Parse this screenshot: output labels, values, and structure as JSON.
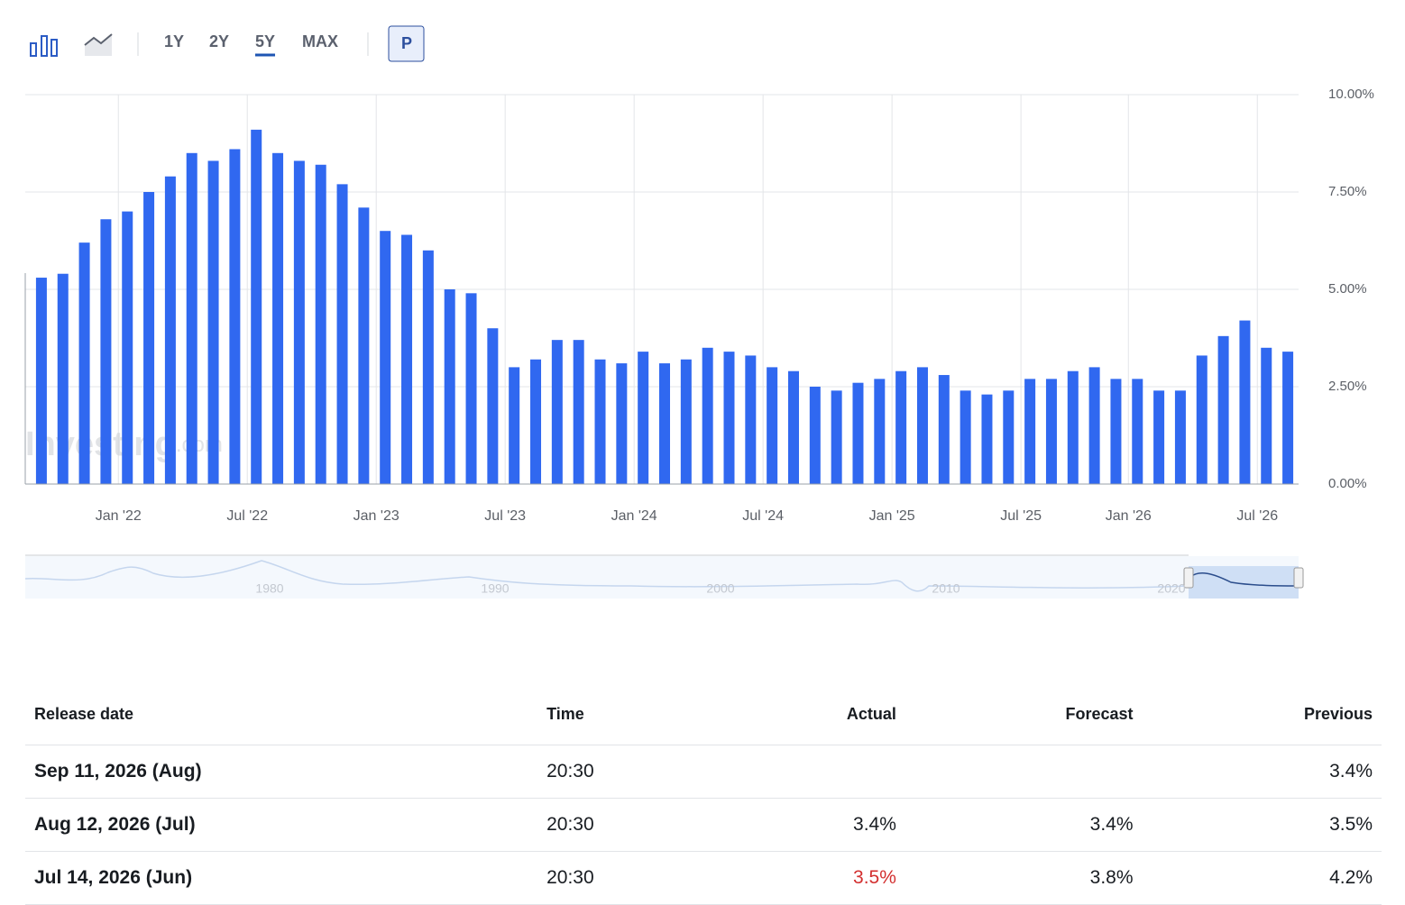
{
  "toolbar": {
    "ranges": [
      "1Y",
      "2Y",
      "5Y",
      "MAX"
    ],
    "active_range": 2,
    "button": "P"
  },
  "chart_data": {
    "type": "bar",
    "color": "#3068f0",
    "categories": [
      null,
      null,
      null,
      null,
      "Jan '22",
      null,
      null,
      null,
      null,
      null,
      "Jul '22",
      null,
      null,
      null,
      null,
      null,
      "Jan '23",
      null,
      null,
      null,
      null,
      null,
      "Jul '23",
      null,
      null,
      null,
      null,
      null,
      "Jan '24",
      null,
      null,
      null,
      null,
      null,
      "Jul '24",
      null,
      null,
      null,
      null,
      null,
      "Jan '25",
      null,
      null,
      null,
      null,
      null,
      "Jul '25",
      null,
      null,
      null,
      null,
      "Jan '26",
      null,
      null,
      null,
      null,
      null,
      "Jul '26",
      null
    ],
    "values": [
      5.3,
      5.4,
      6.2,
      6.8,
      7.0,
      7.5,
      7.9,
      8.5,
      8.3,
      8.6,
      9.1,
      8.5,
      8.3,
      8.2,
      7.7,
      7.1,
      6.5,
      6.4,
      6.0,
      5.0,
      4.9,
      4.0,
      3.0,
      3.2,
      3.7,
      3.7,
      3.2,
      3.1,
      3.4,
      3.1,
      3.2,
      3.5,
      3.4,
      3.3,
      3.0,
      2.9,
      2.5,
      2.4,
      2.6,
      2.7,
      2.9,
      3.0,
      2.8,
      2.4,
      2.3,
      2.4,
      2.7,
      2.7,
      2.9,
      3.0,
      2.7,
      2.7,
      2.4,
      2.4,
      3.3,
      3.8,
      4.2,
      3.5,
      3.4
    ],
    "ylim": [
      0,
      10
    ],
    "yticks": [
      {
        "value": 0,
        "label": "0.00%"
      },
      {
        "value": 2.5,
        "label": "2.50%"
      },
      {
        "value": 5,
        "label": "5.00%"
      },
      {
        "value": 7.5,
        "label": "7.50%"
      },
      {
        "value": 10,
        "label": "10.00%"
      }
    ],
    "grid": true,
    "watermark": [
      "Investing",
      ".com"
    ]
  },
  "navigator": {
    "labels": [
      "1980",
      "1990",
      "2000",
      "2010",
      "2020"
    ]
  },
  "table": {
    "headers": [
      "Release date",
      "Time",
      "Actual",
      "Forecast",
      "Previous"
    ],
    "rows": [
      [
        "Sep 11, 2026 (Aug)",
        "20:30",
        null,
        null,
        "3.4%"
      ],
      [
        "Aug 12, 2026 (Jul)",
        "20:30",
        "3.4%",
        "3.4%",
        "3.5%"
      ],
      [
        "Jul 14, 2026 (Jun)",
        "20:30",
        "3.5%",
        "3.8%",
        "4.2%"
      ]
    ],
    "negative_cells": [
      [
        2,
        2
      ]
    ]
  }
}
